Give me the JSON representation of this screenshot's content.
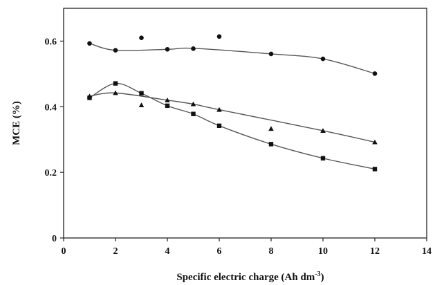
{
  "chart_data": {
    "type": "scatter",
    "title": "",
    "xlabel": "Specific electric charge (Ah dm",
    "xlabel_superscript": "-3",
    "xlabel_suffix": ")",
    "ylabel": "MCE (%)",
    "xlim": [
      0,
      14
    ],
    "ylim": [
      0,
      0.7
    ],
    "xticks": [
      0,
      2,
      4,
      6,
      8,
      10,
      12,
      14
    ],
    "yticks": [
      0,
      0.2,
      0.4,
      0.6
    ],
    "ytick_labels": [
      "0",
      "0.2",
      "0.4",
      "0.6"
    ],
    "grid": false,
    "legend": "none",
    "series": [
      {
        "marker": "circle",
        "color": "#111111",
        "points": [
          [
            1,
            0.593
          ],
          [
            2,
            0.572
          ],
          [
            3,
            0.61
          ],
          [
            4,
            0.575
          ],
          [
            5,
            0.577
          ],
          [
            6,
            0.614
          ],
          [
            8,
            0.561
          ],
          [
            10,
            0.546
          ],
          [
            12,
            0.501
          ]
        ],
        "trend": [
          [
            1,
            0.593
          ],
          [
            2,
            0.572
          ],
          [
            4,
            0.575
          ],
          [
            5,
            0.578
          ],
          [
            8,
            0.561
          ],
          [
            10,
            0.546
          ],
          [
            12,
            0.501
          ]
        ]
      },
      {
        "marker": "square",
        "color": "#111111",
        "points": [
          [
            1,
            0.427
          ],
          [
            2,
            0.471
          ],
          [
            3,
            0.441
          ],
          [
            4,
            0.403
          ],
          [
            5,
            0.378
          ],
          [
            6,
            0.342
          ],
          [
            8,
            0.286
          ],
          [
            10,
            0.243
          ],
          [
            12,
            0.21
          ]
        ],
        "trend": [
          [
            1,
            0.427
          ],
          [
            2,
            0.471
          ],
          [
            3,
            0.441
          ],
          [
            4,
            0.403
          ],
          [
            5,
            0.378
          ],
          [
            6,
            0.342
          ],
          [
            8,
            0.286
          ],
          [
            10,
            0.243
          ],
          [
            12,
            0.21
          ]
        ]
      },
      {
        "marker": "triangle",
        "color": "#111111",
        "points": [
          [
            1,
            0.432
          ],
          [
            2,
            0.442
          ],
          [
            3,
            0.405
          ],
          [
            4,
            0.42
          ],
          [
            5,
            0.408
          ],
          [
            6,
            0.391
          ],
          [
            8,
            0.333
          ],
          [
            10,
            0.327
          ],
          [
            12,
            0.292
          ]
        ],
        "trend": [
          [
            1,
            0.432
          ],
          [
            2,
            0.442
          ],
          [
            4,
            0.42
          ],
          [
            5,
            0.408
          ],
          [
            6,
            0.391
          ],
          [
            10,
            0.327
          ],
          [
            12,
            0.292
          ]
        ]
      }
    ]
  }
}
